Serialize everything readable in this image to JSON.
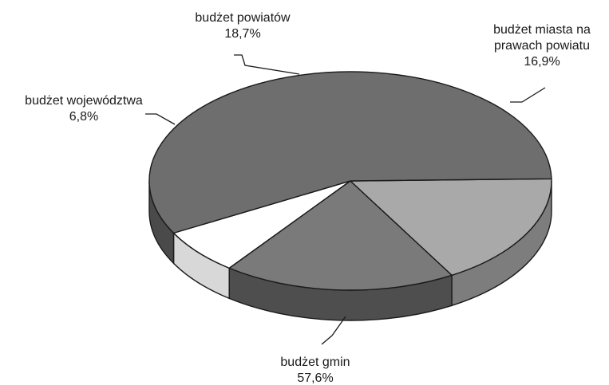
{
  "chart_data": {
    "type": "pie",
    "title": "",
    "style": "3d-tilted",
    "start_angle_deg": 208.5,
    "series": [
      {
        "values": [
          6.8,
          18.7,
          16.9,
          57.6
        ]
      }
    ],
    "slices": [
      {
        "key": "wojewodztwa",
        "label": "budżet województwa",
        "value": 6.8,
        "value_label": "6,8%",
        "color": "#ffffff",
        "side_color": "#d8d8d8"
      },
      {
        "key": "powiatow",
        "label": "budżet powiatów",
        "value": 18.7,
        "value_label": "18,7%",
        "color": "#7a7a7a",
        "side_color": "#4e4e4e"
      },
      {
        "key": "miasta",
        "label_lines": [
          "budżet miasta na",
          "prawach powiatu"
        ],
        "value": 16.9,
        "value_label": "16,9%",
        "color": "#a9a9a9",
        "side_color": "#7d7d7d"
      },
      {
        "key": "gmin",
        "label": "budżet gmin",
        "value": 57.6,
        "value_label": "57,6%",
        "color": "#6e6e6e",
        "side_color": "#4a4a4a"
      }
    ]
  }
}
